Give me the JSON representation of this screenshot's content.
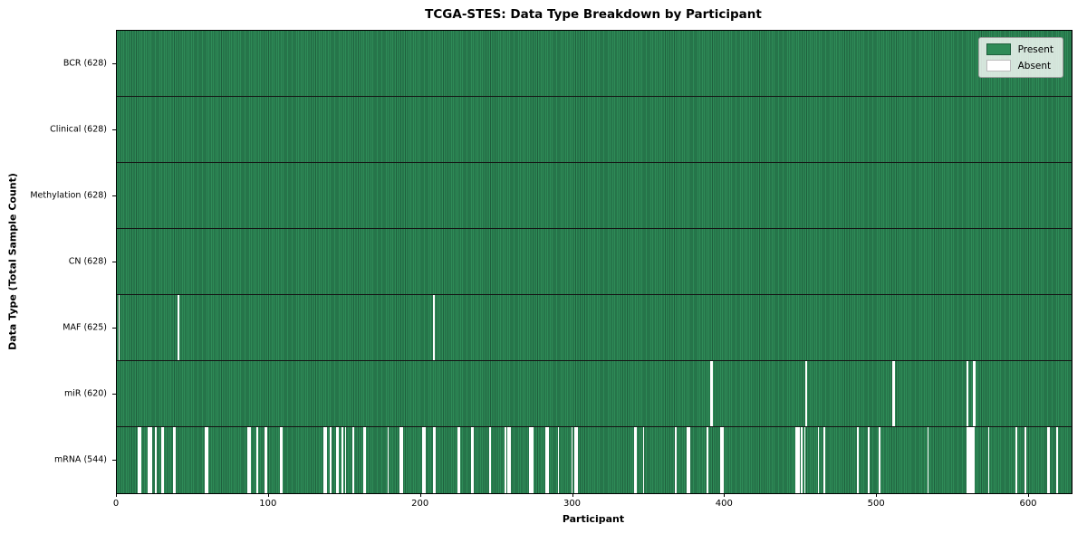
{
  "chart_data": {
    "type": "heatmap",
    "title": "TCGA-STES: Data Type Breakdown by Participant",
    "xlabel": "Participant",
    "ylabel": "Data Type (Total Sample Count)",
    "x_ticks": [
      0,
      100,
      200,
      300,
      400,
      500,
      600
    ],
    "x_max": 628,
    "n_participants": 628,
    "grid": false,
    "legend_position": "upper right",
    "legend": [
      {
        "label": "Present",
        "color": "#2e8b57"
      },
      {
        "label": "Absent",
        "color": "#ffffff"
      }
    ],
    "colors": {
      "present_fill": "#2e8b57",
      "present_edge": "#1f5f3d",
      "absent_fill": "#ffffff",
      "row_separator": "#141414"
    },
    "rows": [
      {
        "label": "BCR (628)",
        "name": "BCR",
        "present_count": 628,
        "absent_indices": []
      },
      {
        "label": "Clinical (628)",
        "name": "Clinical",
        "present_count": 628,
        "absent_indices": []
      },
      {
        "label": "Methylation (628)",
        "name": "Methylation",
        "present_count": 628,
        "absent_indices": []
      },
      {
        "label": "CN (628)",
        "name": "CN",
        "present_count": 628,
        "absent_indices": []
      },
      {
        "label": "MAF (625)",
        "name": "MAF",
        "present_count": 625,
        "absent_indices": [
          1,
          40,
          208
        ]
      },
      {
        "label": "miR (620)",
        "name": "miR",
        "present_count": 620,
        "absent_indices": [
          390,
          391,
          453,
          510,
          511,
          559,
          563,
          564
        ]
      },
      {
        "label": "mRNA (544)",
        "name": "mRNA",
        "present_count": 544,
        "absent_indices": [
          14,
          15,
          20,
          21,
          22,
          25,
          29,
          30,
          37,
          38,
          58,
          59,
          86,
          87,
          92,
          97,
          98,
          107,
          108,
          136,
          137,
          140,
          144,
          145,
          148,
          150,
          155,
          162,
          163,
          178,
          186,
          187,
          201,
          202,
          208,
          209,
          224,
          225,
          233,
          234,
          245,
          255,
          257,
          258,
          271,
          272,
          273,
          282,
          283,
          290,
          299,
          301,
          302,
          340,
          341,
          346,
          367,
          375,
          376,
          388,
          397,
          398,
          446,
          447,
          448,
          450,
          452,
          461,
          465,
          487,
          494,
          501,
          533,
          559,
          560,
          561,
          562,
          563,
          573,
          591,
          597,
          612,
          613,
          618
        ]
      }
    ]
  }
}
